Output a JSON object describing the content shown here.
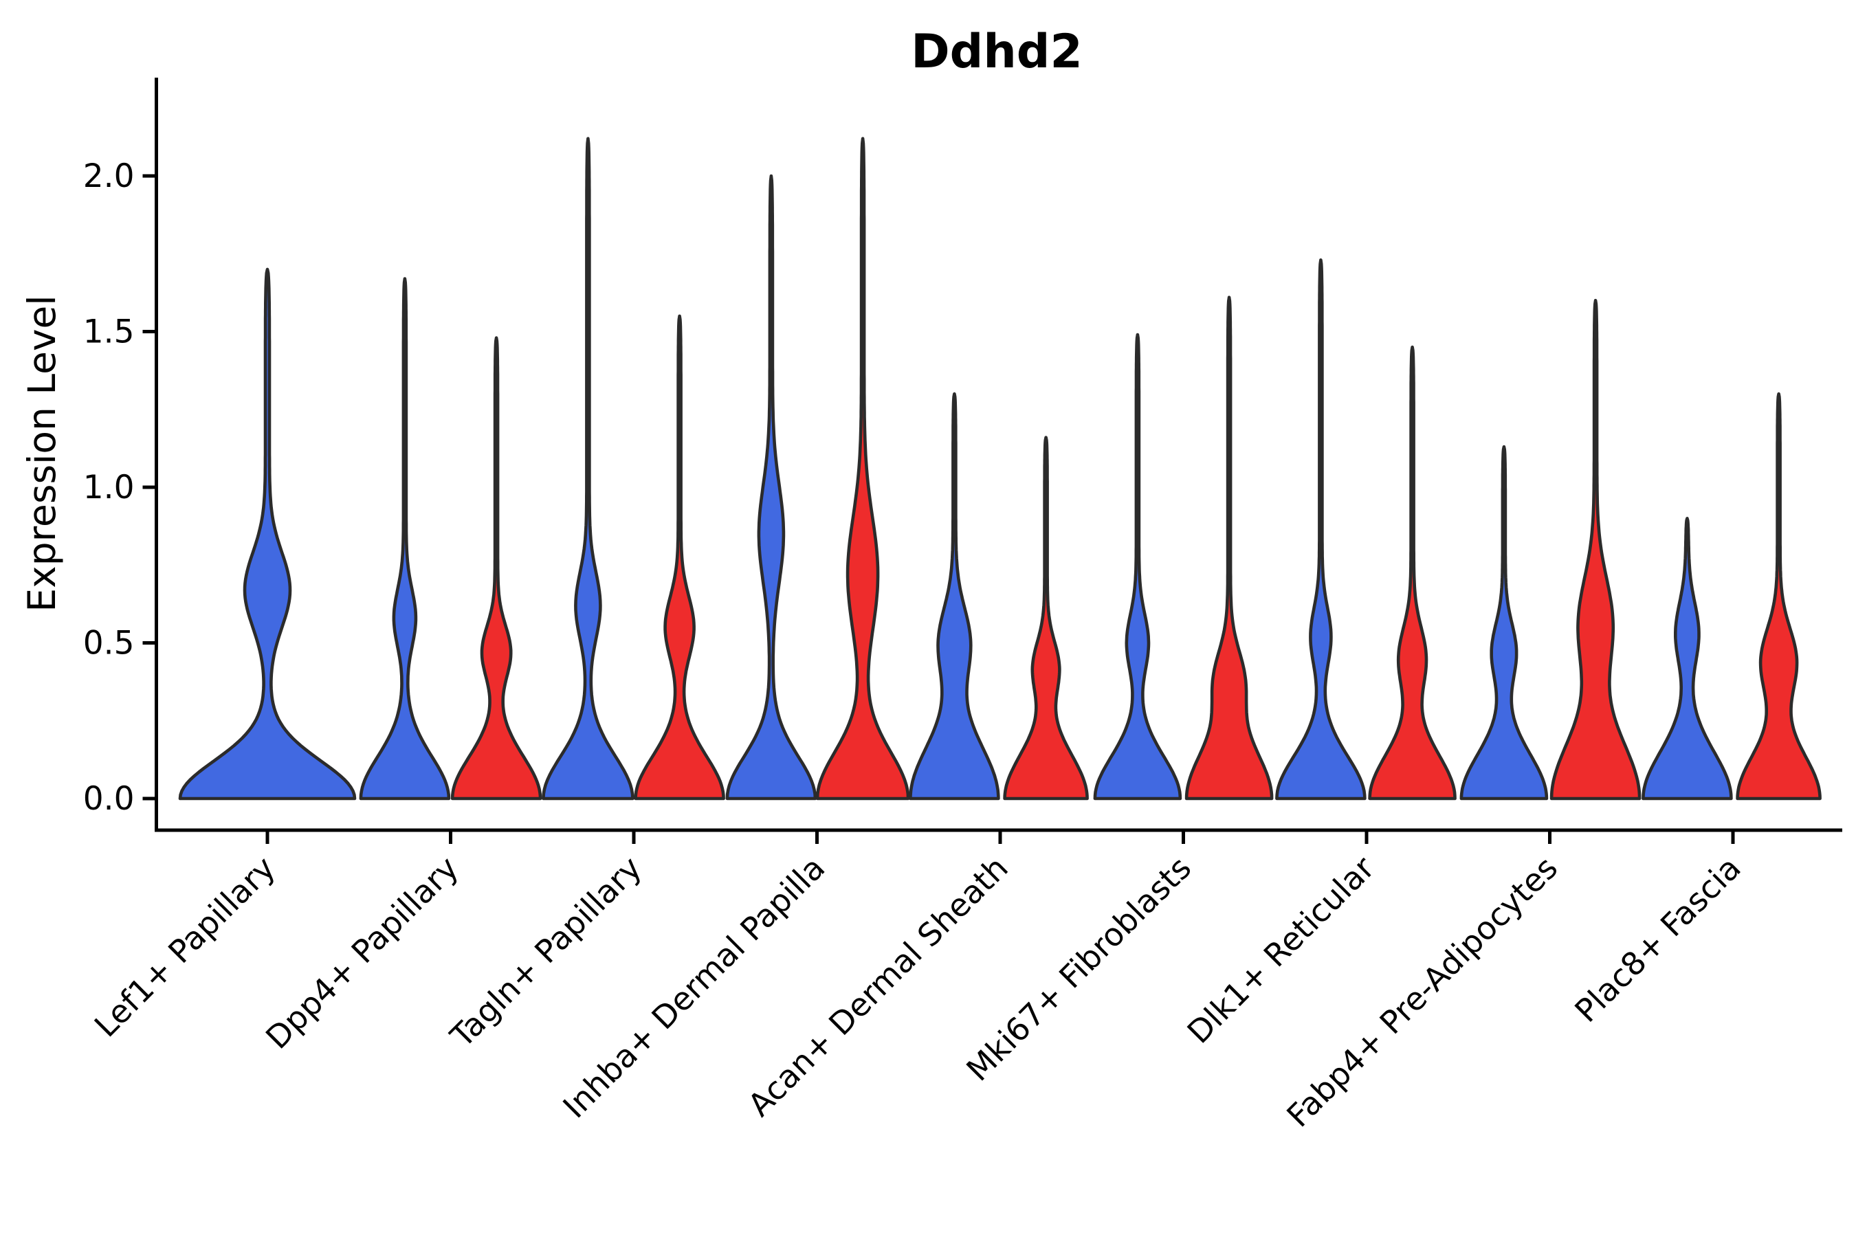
{
  "figure": {
    "title": "Ddhd2",
    "ylabel": "Expression Level"
  },
  "colors": {
    "blue": "#4169E1",
    "red": "#EE2C2C",
    "outline": "#2b2b2b",
    "axis": "#000000"
  },
  "chart_data": {
    "type": "violin",
    "title": "Ddhd2",
    "ylabel": "Expression Level",
    "xlabel": "",
    "ylim": [
      0,
      2.3
    ],
    "yticks": [
      0,
      0.5,
      1,
      1.5,
      2
    ],
    "ytick_labels": [
      "0.0",
      "0.5",
      "1.0",
      "1.5",
      "2.0"
    ],
    "grid": false,
    "legend": "none",
    "categories": [
      "Lef1+ Papillary",
      "Dpp4+ Papillary",
      "Tagln+ Papillary",
      "Inhba+ Dermal Papilla",
      "Acan+ Dermal Sheath",
      "Mki67+ Fibroblasts",
      "Dlk1+ Reticular",
      "Fabp4+ Pre-Adipocytes",
      "Plac8+ Fascia"
    ],
    "series": [
      {
        "name": "split-blue",
        "color": "#4169E1",
        "max_expression": [
          1.7,
          1.67,
          2.12,
          2.0,
          1.3,
          1.49,
          1.73,
          1.13,
          0.9
        ]
      },
      {
        "name": "split-red",
        "color": "#EE2C2C",
        "max_expression": [
          null,
          1.48,
          1.55,
          2.12,
          1.16,
          1.61,
          1.45,
          1.6,
          1.3
        ]
      }
    ],
    "violins": [
      {
        "category": "Lef1+ Papillary",
        "split": "blue",
        "single": true,
        "vmax": 1.7,
        "bulge_c": 0.67,
        "bulge_s": 0.17,
        "bulge_hw": 30,
        "base_hw": 124,
        "base_sigma": 0.17,
        "tail_hw": 3
      },
      {
        "category": "Dpp4+ Papillary",
        "split": "blue",
        "single": false,
        "vmax": 1.67,
        "bulge_c": 0.58,
        "bulge_s": 0.13,
        "bulge_hw": 14,
        "base_hw": 62,
        "base_sigma": 0.19,
        "tail_hw": 2
      },
      {
        "category": "Dpp4+ Papillary",
        "split": "red",
        "single": false,
        "vmax": 1.48,
        "bulge_c": 0.47,
        "bulge_s": 0.12,
        "bulge_hw": 19,
        "base_hw": 62,
        "base_sigma": 0.19,
        "tail_hw": 2
      },
      {
        "category": "Tagln+ Papillary",
        "split": "blue",
        "single": false,
        "vmax": 2.12,
        "bulge_c": 0.62,
        "bulge_s": 0.15,
        "bulge_hw": 16,
        "base_hw": 63,
        "base_sigma": 0.19,
        "tail_hw": 2
      },
      {
        "category": "Tagln+ Papillary",
        "split": "red",
        "single": false,
        "vmax": 1.55,
        "bulge_c": 0.55,
        "bulge_s": 0.14,
        "bulge_hw": 19,
        "base_hw": 62,
        "base_sigma": 0.19,
        "tail_hw": 2
      },
      {
        "category": "Inhba+ Dermal Papilla",
        "split": "blue",
        "single": false,
        "vmax": 2.0,
        "bulge_c": 0.85,
        "bulge_s": 0.22,
        "bulge_hw": 16,
        "base_hw": 62,
        "base_sigma": 0.19,
        "tail_hw": 2
      },
      {
        "category": "Inhba+ Dermal Papilla",
        "split": "red",
        "single": false,
        "vmax": 2.12,
        "bulge_c": 0.72,
        "bulge_s": 0.26,
        "bulge_hw": 20,
        "base_hw": 64,
        "base_sigma": 0.21,
        "tail_hw": 2
      },
      {
        "category": "Acan+ Dermal Sheath",
        "split": "blue",
        "single": false,
        "vmax": 1.3,
        "bulge_c": 0.5,
        "bulge_s": 0.16,
        "bulge_hw": 21,
        "base_hw": 62,
        "base_sigma": 0.24,
        "tail_hw": 2
      },
      {
        "category": "Acan+ Dermal Sheath",
        "split": "red",
        "single": false,
        "vmax": 1.16,
        "bulge_c": 0.42,
        "bulge_s": 0.12,
        "bulge_hw": 17,
        "base_hw": 58,
        "base_sigma": 0.2,
        "tail_hw": 2
      },
      {
        "category": "Mki67+ Fibroblasts",
        "split": "blue",
        "single": false,
        "vmax": 1.49,
        "bulge_c": 0.5,
        "bulge_s": 0.13,
        "bulge_hw": 14,
        "base_hw": 60,
        "base_sigma": 0.19,
        "tail_hw": 2
      },
      {
        "category": "Mki67+ Fibroblasts",
        "split": "red",
        "single": false,
        "vmax": 1.61,
        "bulge_c": 0.38,
        "bulge_s": 0.14,
        "bulge_hw": 19,
        "base_hw": 60,
        "base_sigma": 0.22,
        "tail_hw": 2
      },
      {
        "category": "Dlk1+ Reticular",
        "split": "blue",
        "single": false,
        "vmax": 1.73,
        "bulge_c": 0.52,
        "bulge_s": 0.13,
        "bulge_hw": 13,
        "base_hw": 62,
        "base_sigma": 0.19,
        "tail_hw": 2
      },
      {
        "category": "Dlk1+ Reticular",
        "split": "red",
        "single": false,
        "vmax": 1.45,
        "bulge_c": 0.45,
        "bulge_s": 0.14,
        "bulge_hw": 18,
        "base_hw": 60,
        "base_sigma": 0.2,
        "tail_hw": 2
      },
      {
        "category": "Fabp4+ Pre-Adipocytes",
        "split": "blue",
        "single": false,
        "vmax": 1.13,
        "bulge_c": 0.47,
        "bulge_s": 0.13,
        "bulge_hw": 16,
        "base_hw": 60,
        "base_sigma": 0.2,
        "tail_hw": 2
      },
      {
        "category": "Fabp4+ Pre-Adipocytes",
        "split": "red",
        "single": false,
        "vmax": 1.6,
        "bulge_c": 0.56,
        "bulge_s": 0.21,
        "bulge_hw": 23,
        "base_hw": 62,
        "base_sigma": 0.26,
        "tail_hw": 2
      },
      {
        "category": "Plac8+ Fascia",
        "split": "blue",
        "single": false,
        "vmax": 0.9,
        "bulge_c": 0.53,
        "bulge_s": 0.14,
        "bulge_hw": 15,
        "base_hw": 62,
        "base_sigma": 0.21,
        "tail_hw": 2
      },
      {
        "category": "Plac8+ Fascia",
        "split": "red",
        "single": false,
        "vmax": 1.3,
        "bulge_c": 0.44,
        "bulge_s": 0.15,
        "bulge_hw": 24,
        "base_hw": 58,
        "base_sigma": 0.2,
        "tail_hw": 2
      }
    ]
  }
}
